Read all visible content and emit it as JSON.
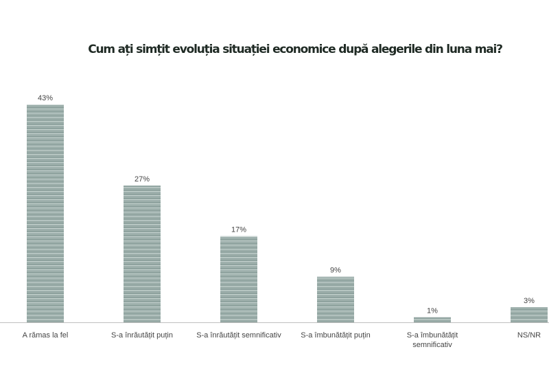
{
  "chart_data": {
    "type": "bar",
    "title": "Cum ați simțit evoluția situației economice după alegerile din luna mai?",
    "categories": [
      "A rămas la fel",
      "S-a înrăutățit puțin",
      "S-a înrăutățit semnificativ",
      "S-a îmbunătățit puțin",
      "S-a îmbunătățit semnificativ",
      "NS/NR"
    ],
    "values": [
      43,
      27,
      17,
      9,
      1,
      3
    ],
    "data_labels": [
      "43%",
      "27%",
      "17%",
      "9%",
      "1%",
      "3%"
    ],
    "unit": "%",
    "ylim": [
      0,
      45
    ],
    "grid": false,
    "colors": {
      "bar": "#8fa39f",
      "bar_stripe": "#c9d5d2",
      "axis": "#bfbfbf"
    }
  }
}
